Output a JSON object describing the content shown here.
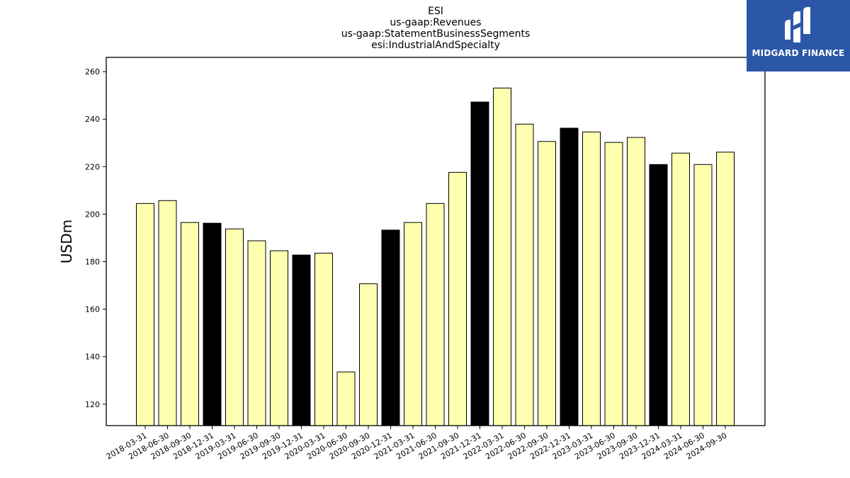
{
  "chart_data": {
    "type": "bar",
    "title": [
      "ESI",
      "us-gaap:Revenues",
      "us-gaap:StatementBusinessSegments",
      "esi:IndustrialAndSpecialty"
    ],
    "xlabel": "",
    "ylabel": "USDm",
    "ylim": [
      111,
      266
    ],
    "yticks": [
      120,
      140,
      160,
      180,
      200,
      220,
      240,
      260
    ],
    "grid": false,
    "categories": [
      "2018-03-31",
      "2018-06-30",
      "2018-09-30",
      "2018-12-31",
      "2019-03-31",
      "2019-06-30",
      "2019-09-30",
      "2019-12-31",
      "2020-03-31",
      "2020-06-30",
      "2020-09-30",
      "2020-12-31",
      "2021-03-31",
      "2021-06-30",
      "2021-09-30",
      "2021-12-31",
      "2022-03-31",
      "2022-06-30",
      "2022-09-30",
      "2022-12-31",
      "2023-03-31",
      "2023-06-30",
      "2023-09-30",
      "2023-12-31",
      "2024-03-31",
      "2024-06-30",
      "2024-09-30"
    ],
    "values": [
      204.5,
      205.7,
      196.5,
      196.2,
      193.8,
      188.8,
      184.6,
      182.8,
      183.6,
      133.6,
      170.7,
      193.3,
      196.5,
      204.5,
      217.6,
      247.2,
      253.1,
      237.9,
      230.6,
      236.2,
      234.6,
      230.2,
      232.3,
      220.9,
      225.7,
      220.9,
      226.1
    ],
    "colors": {
      "quarter": "#ffffb0",
      "year_end": "#000000",
      "edge": "#000000"
    }
  },
  "logo": {
    "text": "MIDGARD FINANCE",
    "background": "#2c56a8"
  }
}
